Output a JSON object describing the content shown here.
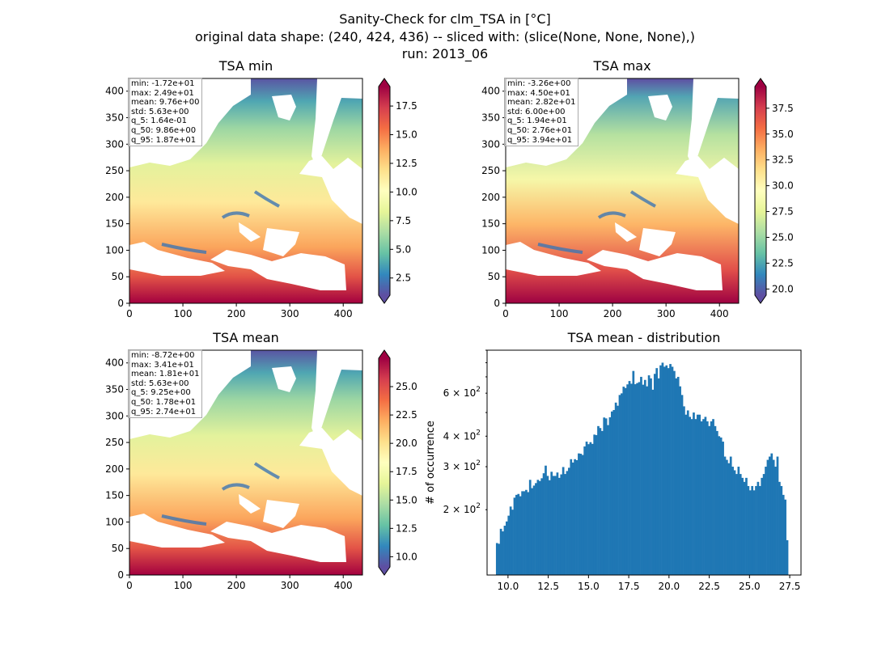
{
  "figure": {
    "suptitle": [
      "Sanity-Check for clm_TSA in [°C]",
      "original data shape: (240, 424, 436) -- sliced with: (slice(None, None, None),)",
      "run: 2013_06"
    ]
  },
  "colors": {
    "colormap": "Spectral_r",
    "histogram_bar": "#1f77b4"
  },
  "chart_data": [
    {
      "type": "heatmap",
      "title": "TSA min",
      "xlim": [
        0,
        436
      ],
      "ylim": [
        0,
        424
      ],
      "xticks": [
        0,
        100,
        200,
        300,
        400
      ],
      "yticks": [
        0,
        50,
        100,
        150,
        200,
        250,
        300,
        350,
        400
      ],
      "colorbar": {
        "range": [
          1.0,
          19.2
        ],
        "ticks": [
          "2.5",
          "5.0",
          "7.5",
          "10.0",
          "12.5",
          "15.0",
          "17.5"
        ],
        "tick_values": [
          2.5,
          5.0,
          7.5,
          10.0,
          12.5,
          15.0,
          17.5
        ],
        "extend": "both"
      },
      "stats": [
        "min: -1.72e+01",
        "max: 2.49e+01",
        "mean: 9.76e+00",
        "std: 5.63e+00",
        "q_5: 1.64e-01",
        "q_50: 9.86e+00",
        "q_95: 1.87e+01"
      ]
    },
    {
      "type": "heatmap",
      "title": "TSA max",
      "xlim": [
        0,
        436
      ],
      "ylim": [
        0,
        424
      ],
      "xticks": [
        0,
        100,
        200,
        300,
        400
      ],
      "yticks": [
        0,
        50,
        100,
        150,
        200,
        250,
        300,
        350,
        400
      ],
      "colorbar": {
        "range": [
          19.4,
          39.6
        ],
        "ticks": [
          "20.0",
          "22.5",
          "25.0",
          "27.5",
          "30.0",
          "32.5",
          "35.0",
          "37.5"
        ],
        "tick_values": [
          20.0,
          22.5,
          25.0,
          27.5,
          30.0,
          32.5,
          35.0,
          37.5
        ],
        "extend": "both"
      },
      "stats": [
        "min: -3.26e+00",
        "max: 4.50e+01",
        "mean: 2.82e+01",
        "std: 6.00e+00",
        "q_5: 1.94e+01",
        "q_50: 2.76e+01",
        "q_95: 3.94e+01"
      ]
    },
    {
      "type": "heatmap",
      "title": "TSA mean",
      "xlim": [
        0,
        436
      ],
      "ylim": [
        0,
        424
      ],
      "xticks": [
        0,
        100,
        200,
        300,
        400
      ],
      "yticks": [
        0,
        50,
        100,
        150,
        200,
        250,
        300,
        350,
        400
      ],
      "colorbar": {
        "range": [
          9.1,
          27.5
        ],
        "ticks": [
          "10.0",
          "12.5",
          "15.0",
          "17.5",
          "20.0",
          "22.5",
          "25.0"
        ],
        "tick_values": [
          10.0,
          12.5,
          15.0,
          17.5,
          20.0,
          22.5,
          25.0
        ],
        "extend": "both"
      },
      "stats": [
        "min: -8.72e+00",
        "max: 3.41e+01",
        "mean: 1.81e+01",
        "std: 5.63e+00",
        "q_5: 9.25e+00",
        "q_50: 1.78e+01",
        "q_95: 2.74e+01"
      ]
    },
    {
      "type": "bar",
      "title": "TSA mean - distribution",
      "ylabel": "# of occurrence",
      "yscale": "log",
      "xlim": [
        8.7,
        28.2
      ],
      "ylim": [
        108,
        900
      ],
      "xticks": [
        10.0,
        12.5,
        15.0,
        17.5,
        20.0,
        22.5,
        25.0,
        27.5
      ],
      "xtick_labels": [
        "10.0",
        "12.5",
        "15.0",
        "17.5",
        "20.0",
        "22.5",
        "25.0",
        "27.5"
      ],
      "yticks": [
        200,
        300,
        400,
        600
      ],
      "ytick_labels": [
        {
          "base": "2 × 10",
          "exp": "2"
        },
        {
          "base": "3 × 10",
          "exp": "2"
        },
        {
          "base": "4 × 10",
          "exp": "2"
        },
        {
          "base": "6 × 10",
          "exp": "2"
        }
      ],
      "bins": {
        "start": 9.25,
        "end": 27.4,
        "count": 150
      },
      "values": [
        146,
        145,
        167,
        163,
        172,
        179,
        189,
        206,
        200,
        224,
        230,
        232,
        227,
        238,
        238,
        241,
        236,
        265,
        245,
        251,
        257,
        265,
        262,
        269,
        282,
        303,
        275,
        264,
        286,
        275,
        275,
        284,
        270,
        279,
        299,
        280,
        288,
        297,
        322,
        312,
        322,
        319,
        340,
        339,
        335,
        363,
        380,
        371,
        378,
        372,
        406,
        404,
        440,
        432,
        420,
        477,
        473,
        444,
        478,
        505,
        512,
        549,
        533,
        590,
        599,
        638,
        630,
        652,
        673,
        656,
        740,
        653,
        660,
        666,
        700,
        650,
        680,
        640,
        710,
        690,
        620,
        720,
        760,
        690,
        780,
        800,
        770,
        780,
        760,
        790,
        770,
        740,
        690,
        700,
        640,
        590,
        530,
        490,
        510,
        480,
        470,
        500,
        470,
        490,
        490,
        460,
        470,
        480,
        460,
        440,
        460,
        470,
        440,
        420,
        400,
        395,
        380,
        330,
        320,
        310,
        330,
        300,
        290,
        280,
        300,
        280,
        270,
        260,
        270,
        250,
        240,
        250,
        240,
        250,
        260,
        250,
        270,
        280,
        300,
        320,
        330,
        340,
        320,
        300,
        330,
        260,
        250,
        230,
        220,
        150
      ]
    }
  ]
}
